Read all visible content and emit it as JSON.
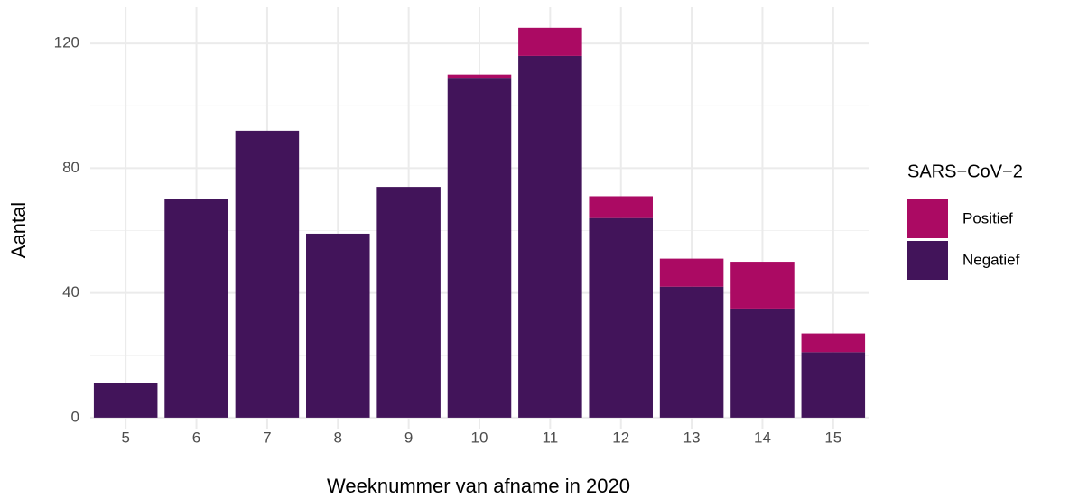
{
  "chart_data": {
    "type": "stacked_bar",
    "x_label": "Weeknummer van afname in 2020",
    "y_label": "Aantal",
    "legend_title": "SARS−CoV−2",
    "categories": [
      "5",
      "6",
      "7",
      "8",
      "9",
      "10",
      "11",
      "12",
      "13",
      "14",
      "15"
    ],
    "series": [
      {
        "name": "Negatief",
        "color": "#42145a",
        "values": [
          11,
          70,
          92,
          59,
          74,
          109,
          116,
          64,
          42,
          35,
          21
        ]
      },
      {
        "name": "Positief",
        "color": "#ab0a63",
        "values": [
          0,
          0,
          0,
          0,
          0,
          1,
          9,
          7,
          9,
          15,
          6
        ]
      }
    ],
    "ylim": [
      -3.5,
      131.6
    ],
    "yticks": [
      0,
      40,
      80,
      120
    ],
    "minor_yticks": [
      20,
      60,
      100
    ],
    "grid": true,
    "legend": "right"
  }
}
